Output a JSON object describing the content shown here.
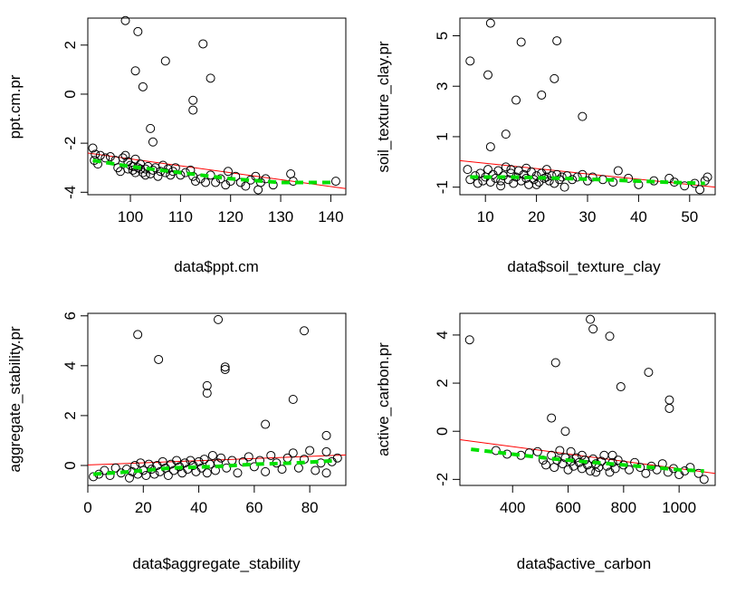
{
  "chart_data": [
    {
      "type": "scatter",
      "xlabel": "data$ppt.cm",
      "ylabel": "ppt.cm.pr",
      "xlim": [
        91.5,
        143
      ],
      "ylim": [
        -4.1,
        3.1
      ],
      "xticks": [
        100,
        110,
        120,
        130,
        140
      ],
      "yticks": [
        -4,
        -2,
        0,
        2
      ],
      "points": [
        [
          99,
          3.0
        ],
        [
          101.5,
          2.55
        ],
        [
          114.5,
          2.05
        ],
        [
          101,
          0.95
        ],
        [
          107,
          1.35
        ],
        [
          116,
          0.65
        ],
        [
          102.5,
          0.3
        ],
        [
          112.5,
          -0.25
        ],
        [
          112.5,
          -0.65
        ],
        [
          104,
          -1.4
        ],
        [
          104.5,
          -1.95
        ],
        [
          92.5,
          -2.2
        ],
        [
          93,
          -2.45
        ],
        [
          92.8,
          -2.7
        ],
        [
          93.5,
          -2.85
        ],
        [
          94,
          -2.5
        ],
        [
          95,
          -2.6
        ],
        [
          96,
          -2.55
        ],
        [
          97,
          -2.7
        ],
        [
          97.5,
          -3.0
        ],
        [
          98,
          -3.15
        ],
        [
          98.5,
          -2.6
        ],
        [
          99,
          -2.5
        ],
        [
          99.5,
          -2.75
        ],
        [
          100,
          -2.9
        ],
        [
          100.5,
          -3.1
        ],
        [
          101,
          -2.65
        ],
        [
          101.5,
          -3.0
        ],
        [
          102,
          -2.85
        ],
        [
          102.5,
          -3.2
        ],
        [
          103,
          -3.05
        ],
        [
          103.5,
          -2.95
        ],
        [
          104,
          -3.25
        ],
        [
          104.5,
          -3.1
        ],
        [
          105,
          -3.0
        ],
        [
          105.5,
          -3.35
        ],
        [
          106,
          -3.15
        ],
        [
          106.5,
          -2.9
        ],
        [
          107,
          -3.2
        ],
        [
          107.5,
          -3.05
        ],
        [
          108,
          -3.3
        ],
        [
          108.5,
          -3.15
        ],
        [
          109,
          -3.0
        ],
        [
          110,
          -3.3
        ],
        [
          111,
          -3.2
        ],
        [
          112,
          -3.1
        ],
        [
          112.5,
          -3.35
        ],
        [
          113,
          -3.55
        ],
        [
          114,
          -3.45
        ],
        [
          115,
          -3.6
        ],
        [
          116,
          -3.3
        ],
        [
          117,
          -3.6
        ],
        [
          118,
          -3.45
        ],
        [
          119,
          -3.7
        ],
        [
          119.5,
          -3.15
        ],
        [
          120,
          -3.55
        ],
        [
          121,
          -3.35
        ],
        [
          122,
          -3.6
        ],
        [
          123,
          -3.75
        ],
        [
          124,
          -3.5
        ],
        [
          125,
          -3.35
        ],
        [
          125.5,
          -3.9
        ],
        [
          126,
          -3.6
        ],
        [
          127,
          -3.45
        ],
        [
          128.5,
          -3.7
        ],
        [
          132,
          -3.25
        ],
        [
          132.5,
          -3.55
        ],
        [
          141,
          -3.55
        ],
        [
          100.5,
          -2.95
        ],
        [
          102,
          -3.05
        ],
        [
          103,
          -3.3
        ],
        [
          101,
          -3.2
        ],
        [
          99.5,
          -3.05
        ]
      ],
      "line": {
        "x": [
          91.5,
          143
        ],
        "y": [
          -2.4,
          -3.85
        ]
      },
      "smooth": {
        "x": [
          92.5,
          100,
          110,
          120,
          130,
          141
        ],
        "y": [
          -2.7,
          -2.95,
          -3.2,
          -3.45,
          -3.6,
          -3.6
        ]
      }
    },
    {
      "type": "scatter",
      "xlabel": "data$soil_texture_clay",
      "ylabel": "soil_texture_clay.pr",
      "xlim": [
        5,
        55
      ],
      "ylim": [
        -1.3,
        5.7
      ],
      "xticks": [
        10,
        20,
        30,
        40,
        50
      ],
      "yticks": [
        -1,
        1,
        3,
        5
      ],
      "points": [
        [
          11,
          5.5
        ],
        [
          24,
          4.8
        ],
        [
          17,
          4.75
        ],
        [
          7,
          4.0
        ],
        [
          10.5,
          3.45
        ],
        [
          23.5,
          3.3
        ],
        [
          21,
          2.65
        ],
        [
          16,
          2.45
        ],
        [
          29,
          1.8
        ],
        [
          14,
          1.1
        ],
        [
          11,
          0.6
        ],
        [
          6.5,
          -0.3
        ],
        [
          7,
          -0.7
        ],
        [
          8,
          -0.55
        ],
        [
          8.5,
          -0.85
        ],
        [
          9,
          -0.45
        ],
        [
          9.5,
          -0.75
        ],
        [
          10,
          -0.6
        ],
        [
          10.5,
          -0.3
        ],
        [
          11,
          -0.8
        ],
        [
          11.5,
          -0.5
        ],
        [
          12,
          -0.65
        ],
        [
          12.5,
          -0.35
        ],
        [
          13,
          -0.75
        ],
        [
          13.5,
          -0.55
        ],
        [
          14,
          -0.2
        ],
        [
          14.5,
          -0.7
        ],
        [
          15,
          -0.45
        ],
        [
          15.5,
          -0.85
        ],
        [
          16,
          -0.6
        ],
        [
          16.5,
          -0.35
        ],
        [
          17,
          -0.75
        ],
        [
          17.5,
          -0.5
        ],
        [
          18,
          -0.65
        ],
        [
          18.5,
          -0.9
        ],
        [
          19,
          -0.4
        ],
        [
          19.5,
          -0.7
        ],
        [
          20,
          -0.55
        ],
        [
          20.5,
          -0.8
        ],
        [
          21,
          -0.45
        ],
        [
          21.5,
          -0.65
        ],
        [
          22,
          -0.3
        ],
        [
          22.5,
          -0.75
        ],
        [
          23,
          -0.55
        ],
        [
          23.5,
          -0.85
        ],
        [
          24,
          -0.5
        ],
        [
          24.5,
          -0.7
        ],
        [
          25,
          -0.6
        ],
        [
          25.5,
          -1.0
        ],
        [
          26,
          -0.55
        ],
        [
          27,
          -0.7
        ],
        [
          28,
          -0.6
        ],
        [
          29,
          -0.5
        ],
        [
          30,
          -0.75
        ],
        [
          31,
          -0.6
        ],
        [
          33,
          -0.7
        ],
        [
          35,
          -0.8
        ],
        [
          36,
          -0.35
        ],
        [
          38,
          -0.65
        ],
        [
          40,
          -0.9
        ],
        [
          43,
          -0.75
        ],
        [
          46,
          -0.65
        ],
        [
          47,
          -0.8
        ],
        [
          49,
          -0.95
        ],
        [
          51,
          -0.85
        ],
        [
          52,
          -1.1
        ],
        [
          53,
          -0.75
        ],
        [
          53.5,
          -0.6
        ],
        [
          13,
          -0.95
        ],
        [
          15,
          -0.3
        ],
        [
          18,
          -0.25
        ],
        [
          20,
          -0.9
        ],
        [
          22,
          -0.6
        ]
      ],
      "line": {
        "x": [
          5,
          55
        ],
        "y": [
          0.05,
          -1.0
        ]
      },
      "smooth": {
        "x": [
          7,
          15,
          25,
          35,
          45,
          53
        ],
        "y": [
          -0.6,
          -0.6,
          -0.65,
          -0.72,
          -0.8,
          -0.85
        ]
      }
    },
    {
      "type": "scatter",
      "xlabel": "data$aggregate_stability",
      "ylabel": "aggregate_stability.pr",
      "xlim": [
        0,
        93
      ],
      "ylim": [
        -0.8,
        6.1
      ],
      "xticks": [
        0,
        20,
        40,
        60,
        80
      ],
      "yticks": [
        0,
        2,
        4,
        6
      ],
      "points": [
        [
          47,
          5.85
        ],
        [
          78,
          5.4
        ],
        [
          18,
          5.25
        ],
        [
          25.5,
          4.25
        ],
        [
          49.5,
          3.95
        ],
        [
          49.5,
          3.85
        ],
        [
          43,
          3.2
        ],
        [
          43,
          2.9
        ],
        [
          74,
          2.65
        ],
        [
          64,
          1.65
        ],
        [
          86,
          1.2
        ],
        [
          2,
          -0.45
        ],
        [
          4,
          -0.35
        ],
        [
          6,
          -0.2
        ],
        [
          8,
          -0.4
        ],
        [
          10,
          -0.1
        ],
        [
          12,
          -0.3
        ],
        [
          14,
          -0.15
        ],
        [
          15,
          -0.5
        ],
        [
          16,
          -0.25
        ],
        [
          17,
          0.0
        ],
        [
          18,
          -0.35
        ],
        [
          19,
          0.1
        ],
        [
          20,
          -0.2
        ],
        [
          21,
          -0.4
        ],
        [
          22,
          0.05
        ],
        [
          23,
          -0.15
        ],
        [
          24,
          -0.35
        ],
        [
          25,
          0.0
        ],
        [
          26,
          -0.25
        ],
        [
          27,
          0.15
        ],
        [
          28,
          -0.1
        ],
        [
          29,
          -0.4
        ],
        [
          30,
          0.05
        ],
        [
          31,
          -0.2
        ],
        [
          32,
          0.2
        ],
        [
          33,
          -0.05
        ],
        [
          34,
          -0.3
        ],
        [
          35,
          0.1
        ],
        [
          36,
          -0.15
        ],
        [
          37,
          0.2
        ],
        [
          38,
          0.0
        ],
        [
          39,
          -0.25
        ],
        [
          40,
          0.15
        ],
        [
          41,
          -0.1
        ],
        [
          42,
          0.25
        ],
        [
          43,
          -0.3
        ],
        [
          44,
          0.05
        ],
        [
          45,
          0.4
        ],
        [
          46,
          -0.2
        ],
        [
          47,
          0.1
        ],
        [
          48,
          0.3
        ],
        [
          50,
          -0.1
        ],
        [
          52,
          0.2
        ],
        [
          54,
          -0.3
        ],
        [
          56,
          0.15
        ],
        [
          58,
          0.35
        ],
        [
          60,
          -0.05
        ],
        [
          62,
          0.2
        ],
        [
          64,
          -0.25
        ],
        [
          66,
          0.4
        ],
        [
          68,
          0.1
        ],
        [
          70,
          -0.15
        ],
        [
          72,
          0.3
        ],
        [
          74,
          0.5
        ],
        [
          76,
          -0.1
        ],
        [
          78,
          0.25
        ],
        [
          80,
          0.6
        ],
        [
          82,
          -0.2
        ],
        [
          84,
          0.1
        ],
        [
          86,
          -0.3
        ],
        [
          88,
          0.15
        ],
        [
          90,
          0.3
        ],
        [
          86,
          0.55
        ]
      ],
      "line": {
        "x": [
          0,
          93
        ],
        "y": [
          0.02,
          0.42
        ]
      },
      "smooth": {
        "x": [
          2,
          15,
          30,
          45,
          60,
          75,
          90
        ],
        "y": [
          -0.35,
          -0.25,
          -0.1,
          -0.05,
          0.05,
          0.1,
          0.2
        ]
      }
    },
    {
      "type": "scatter",
      "xlabel": "data$active_carbon",
      "ylabel": "active_carbon.pr",
      "xlim": [
        210,
        1130
      ],
      "ylim": [
        -2.25,
        4.9
      ],
      "xticks": [
        400,
        600,
        800,
        1000
      ],
      "yticks": [
        -2,
        0,
        2,
        4
      ],
      "points": [
        [
          680,
          4.65
        ],
        [
          690,
          4.25
        ],
        [
          750,
          3.95
        ],
        [
          245,
          3.8
        ],
        [
          555,
          2.85
        ],
        [
          890,
          2.45
        ],
        [
          965,
          1.3
        ],
        [
          965,
          0.95
        ],
        [
          790,
          1.85
        ],
        [
          540,
          0.55
        ],
        [
          590,
          0.0
        ],
        [
          340,
          -0.8
        ],
        [
          380,
          -0.95
        ],
        [
          430,
          -1.0
        ],
        [
          460,
          -0.9
        ],
        [
          490,
          -0.85
        ],
        [
          510,
          -1.2
        ],
        [
          520,
          -1.4
        ],
        [
          540,
          -1.0
        ],
        [
          550,
          -1.5
        ],
        [
          560,
          -1.2
        ],
        [
          570,
          -0.8
        ],
        [
          580,
          -1.35
        ],
        [
          590,
          -1.1
        ],
        [
          600,
          -1.6
        ],
        [
          610,
          -1.25
        ],
        [
          620,
          -1.45
        ],
        [
          630,
          -1.1
        ],
        [
          640,
          -1.3
        ],
        [
          650,
          -1.55
        ],
        [
          660,
          -1.2
        ],
        [
          670,
          -1.4
        ],
        [
          680,
          -1.65
        ],
        [
          690,
          -1.15
        ],
        [
          700,
          -1.35
        ],
        [
          710,
          -1.5
        ],
        [
          720,
          -1.25
        ],
        [
          730,
          -1.0
        ],
        [
          740,
          -1.45
        ],
        [
          750,
          -1.7
        ],
        [
          760,
          -1.3
        ],
        [
          770,
          -1.55
        ],
        [
          780,
          -1.2
        ],
        [
          800,
          -1.4
        ],
        [
          820,
          -1.6
        ],
        [
          840,
          -1.3
        ],
        [
          860,
          -1.5
        ],
        [
          880,
          -1.75
        ],
        [
          900,
          -1.45
        ],
        [
          920,
          -1.6
        ],
        [
          940,
          -1.35
        ],
        [
          960,
          -1.7
        ],
        [
          980,
          -1.55
        ],
        [
          1000,
          -1.8
        ],
        [
          1020,
          -1.65
        ],
        [
          1040,
          -1.5
        ],
        [
          1070,
          -1.75
        ],
        [
          1090,
          -2.0
        ],
        [
          650,
          -1.0
        ],
        [
          700,
          -1.7
        ],
        [
          760,
          -1.0
        ],
        [
          610,
          -0.85
        ]
      ],
      "line": {
        "x": [
          210,
          1130
        ],
        "y": [
          -0.35,
          -1.75
        ]
      },
      "smooth": {
        "x": [
          250,
          400,
          550,
          700,
          850,
          1000,
          1090
        ],
        "y": [
          -0.75,
          -0.95,
          -1.15,
          -1.3,
          -1.45,
          -1.6,
          -1.65
        ]
      }
    }
  ]
}
